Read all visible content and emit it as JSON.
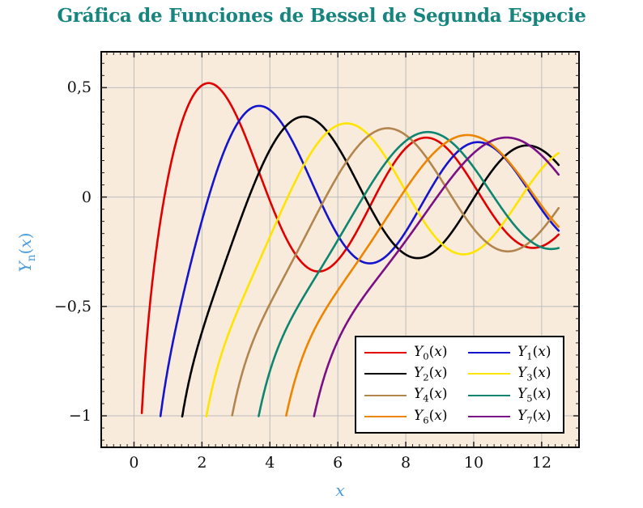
{
  "title": {
    "text": "Gráfica de Funciones de Bessel de Segunda Especie",
    "color": "#17847E"
  },
  "axis": {
    "xlabel": "x",
    "ylabel_base": "Y",
    "ylabel_sub": "n",
    "ylabel_open": "(",
    "ylabel_var": "x",
    "ylabel_close": ")",
    "label_color": "#4E9CDE"
  },
  "chart_data": {
    "type": "line",
    "title": "Gráfica de Funciones de Bessel de Segunda Especie",
    "xlabel": "x",
    "ylabel": "Yn(x)",
    "function_family": "Bessel functions of the second kind Y_n(x), n = 0..7",
    "domain": [
      0,
      12.5
    ],
    "clip_y_min": -1.0,
    "xlim": [
      -0.965,
      13.1
    ],
    "ylim": [
      -1.144,
      0.664
    ],
    "x_ticks": [
      0,
      2,
      4,
      6,
      8,
      10,
      12
    ],
    "x_tick_labels": [
      "0",
      "2",
      "4",
      "6",
      "8",
      "10",
      "12"
    ],
    "y_ticks": [
      0.5,
      0,
      -0.5,
      -1
    ],
    "y_tick_labels": [
      "0,5",
      "0",
      "−0,5",
      "−1"
    ],
    "grid": true,
    "legend_position": "south east",
    "plot_bg": "#F9EBDC",
    "grid_color": "#BDBDBD",
    "tick_color": "#222222",
    "x_samples": [
      1,
      2,
      3,
      4,
      5,
      6,
      7,
      8,
      9,
      10,
      11,
      12
    ],
    "series": [
      {
        "label": "Y0(x)",
        "order": 0,
        "color": "#E10000",
        "values": [
          0.088,
          0.51,
          0.377,
          -0.017,
          -0.308,
          -0.288,
          -0.026,
          0.224,
          0.25,
          0.056,
          -0.169,
          -0.225
        ]
      },
      {
        "label": "Y1(x)",
        "order": 1,
        "color": "#1414CC",
        "values": [
          -0.781,
          -0.107,
          0.325,
          0.398,
          0.148,
          -0.175,
          -0.303,
          -0.158,
          0.104,
          0.249,
          0.164,
          -0.057
        ]
      },
      {
        "label": "Y2(x)",
        "order": 2,
        "color": "#000000",
        "values": [
          null,
          -0.617,
          -0.16,
          0.216,
          0.368,
          0.23,
          -0.061,
          -0.263,
          -0.227,
          -0.006,
          0.199,
          0.216
        ]
      },
      {
        "label": "Y3(x)",
        "order": 3,
        "color": "#FFE400",
        "values": [
          null,
          null,
          -0.539,
          -0.182,
          0.146,
          0.328,
          0.268,
          0.027,
          -0.205,
          -0.251,
          -0.092,
          0.129
        ]
      },
      {
        "label": "Y4(x)",
        "order": 4,
        "color": "#B3854E",
        "values": [
          null,
          null,
          -0.917,
          -0.489,
          -0.192,
          0.098,
          0.29,
          0.283,
          0.09,
          -0.145,
          -0.249,
          -0.151
        ]
      },
      {
        "label": "Y5(x)",
        "order": 5,
        "color": "#0E8570",
        "values": [
          null,
          null,
          null,
          -0.796,
          -0.454,
          -0.197,
          0.064,
          0.256,
          0.285,
          0.136,
          -0.089,
          -0.23
        ]
      },
      {
        "label": "Y6(x)",
        "order": 6,
        "color": "#EE8500",
        "values": [
          null,
          null,
          null,
          null,
          -0.715,
          -0.427,
          -0.199,
          0.038,
          0.227,
          0.28,
          0.167,
          -0.04
        ]
      },
      {
        "label": "Y7(x)",
        "order": 7,
        "color": "#7A1086",
        "values": [
          null,
          null,
          null,
          null,
          null,
          -0.657,
          -0.406,
          -0.2,
          0.017,
          0.201,
          0.272,
          0.19
        ]
      }
    ]
  }
}
